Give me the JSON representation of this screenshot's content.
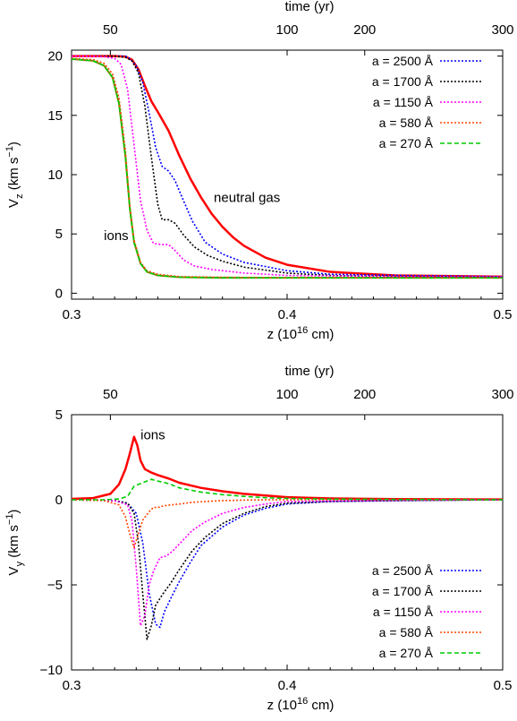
{
  "chart_data": [
    {
      "type": "line",
      "ylabel": "V",
      "ylabel_sub": "z",
      "ylabel_units_pre": " (km s",
      "ylabel_units_sup": "−1",
      "ylabel_units_post": ")",
      "xlabel_pre": "z (10",
      "xlabel_sup": "16",
      "xlabel_post": " cm)",
      "top_axis_label": "time (yr)",
      "top_ticks": [
        {
          "label": "50",
          "z": 0.318
        },
        {
          "label": "100",
          "z": 0.4
        },
        {
          "label": "200",
          "z": 0.436
        },
        {
          "label": "300",
          "z": 0.5
        }
      ],
      "xlim": [
        0.3,
        0.5
      ],
      "ylim": [
        -0.5,
        20.5
      ],
      "xticks": [
        {
          "value": 0.3,
          "label": "0.3"
        },
        {
          "value": 0.4,
          "label": "0.4"
        },
        {
          "value": 0.5,
          "label": "0.5"
        }
      ],
      "yticks": [
        {
          "value": 0,
          "label": "0"
        },
        {
          "value": 5,
          "label": "5"
        },
        {
          "value": 10,
          "label": "10"
        },
        {
          "value": 15,
          "label": "15"
        },
        {
          "value": 20,
          "label": "20"
        }
      ],
      "legend_position": "top-right",
      "annotations": [
        {
          "text": "neutral gas",
          "x": 0.366,
          "y": 7.7
        },
        {
          "text": "ions",
          "x": 0.315,
          "y": 4.5
        }
      ],
      "series": [
        {
          "name": "a = 2500 Å",
          "color": "#0000ff",
          "style": "dotted",
          "x": [
            0.3,
            0.3,
            0.32,
            0.325,
            0.327,
            0.33,
            0.333,
            0.336,
            0.339,
            0.342,
            0.345,
            0.348,
            0.351,
            0.356,
            0.362,
            0.37,
            0.38,
            0.4,
            0.42,
            0.45,
            0.5
          ],
          "values": [
            20,
            20,
            20,
            20,
            19.8,
            19.2,
            17.8,
            15.2,
            12.3,
            10.7,
            10.3,
            9.5,
            8.2,
            6.1,
            4.3,
            3.3,
            2.6,
            1.9,
            1.6,
            1.5,
            1.4
          ]
        },
        {
          "name": "a = 1700 Å",
          "color": "#000000",
          "style": "dotted",
          "x": [
            0.3,
            0.32,
            0.325,
            0.328,
            0.331,
            0.334,
            0.337,
            0.34,
            0.342,
            0.345,
            0.348,
            0.352,
            0.357,
            0.363,
            0.37,
            0.38,
            0.4,
            0.42,
            0.45,
            0.5
          ],
          "values": [
            20,
            20,
            19.9,
            19.6,
            18.6,
            15.8,
            11.5,
            7.5,
            6.2,
            6.2,
            5.9,
            4.9,
            3.9,
            3.2,
            2.7,
            2.2,
            1.7,
            1.5,
            1.4,
            1.4
          ]
        },
        {
          "name": "a = 1150 Å",
          "color": "#ff00ff",
          "style": "dotted",
          "x": [
            0.3,
            0.315,
            0.32,
            0.323,
            0.326,
            0.329,
            0.332,
            0.335,
            0.338,
            0.342,
            0.345,
            0.348,
            0.352,
            0.357,
            0.365,
            0.38,
            0.4,
            0.45,
            0.5
          ],
          "values": [
            20,
            19.95,
            19.8,
            19.3,
            17.2,
            12.5,
            7.8,
            5.3,
            4.2,
            4.1,
            4.1,
            3.6,
            2.8,
            2.3,
            2.0,
            1.7,
            1.5,
            1.4,
            1.4
          ]
        },
        {
          "name": "a = 580 Å",
          "color": "#ff4500",
          "style": "dotted",
          "x": [
            0.3,
            0.31,
            0.315,
            0.319,
            0.322,
            0.325,
            0.327,
            0.329,
            0.332,
            0.335,
            0.34,
            0.35,
            0.37,
            0.4,
            0.5
          ],
          "values": [
            19.8,
            19.7,
            19.4,
            18.5,
            16.5,
            12,
            7.5,
            4.5,
            2.6,
            1.9,
            1.6,
            1.4,
            1.35,
            1.3,
            1.3
          ]
        },
        {
          "name": "a = 270 Å",
          "color": "#00cc00",
          "style": "dashed",
          "x": [
            0.3,
            0.31,
            0.315,
            0.319,
            0.322,
            0.325,
            0.327,
            0.329,
            0.332,
            0.335,
            0.34,
            0.35,
            0.37,
            0.4,
            0.5
          ],
          "values": [
            19.75,
            19.6,
            19.2,
            18.2,
            16,
            11.5,
            7.2,
            4.3,
            2.5,
            1.8,
            1.5,
            1.35,
            1.3,
            1.3,
            1.3
          ]
        },
        {
          "name": "",
          "color": "#ff0000",
          "style": "solid",
          "width": 2.5,
          "x": [
            0.3,
            0.32,
            0.325,
            0.328,
            0.331,
            0.334,
            0.337,
            0.34,
            0.345,
            0.35,
            0.355,
            0.36,
            0.365,
            0.37,
            0.375,
            0.38,
            0.39,
            0.4,
            0.42,
            0.45,
            0.5
          ],
          "values": [
            20,
            20,
            19.95,
            19.7,
            18.9,
            17.5,
            16.2,
            15.3,
            13.7,
            11.6,
            9.7,
            8.1,
            6.7,
            5.6,
            4.7,
            4.0,
            3.0,
            2.4,
            1.8,
            1.5,
            1.4
          ]
        },
        {
          "name": "",
          "color": "#808000",
          "style": "solid",
          "width": 2,
          "x": [
            0.3,
            0.31,
            0.315,
            0.319,
            0.322,
            0.325,
            0.327,
            0.329,
            0.332,
            0.335,
            0.34,
            0.35,
            0.37,
            0.4,
            0.5
          ],
          "values": [
            19.75,
            19.6,
            19.2,
            18.2,
            16,
            11.5,
            7.2,
            4.3,
            2.5,
            1.8,
            1.5,
            1.35,
            1.3,
            1.3,
            1.3
          ]
        }
      ]
    },
    {
      "type": "line",
      "ylabel": "V",
      "ylabel_sub": "y",
      "ylabel_units_pre": " (km s",
      "ylabel_units_sup": "−1",
      "ylabel_units_post": ")",
      "xlabel_pre": "z (10",
      "xlabel_sup": "16",
      "xlabel_post": " cm)",
      "top_axis_label": "time (yr)",
      "top_ticks": [
        {
          "label": "50",
          "z": 0.318
        },
        {
          "label": "100",
          "z": 0.4
        },
        {
          "label": "200",
          "z": 0.436
        },
        {
          "label": "300",
          "z": 0.5
        }
      ],
      "xlim": [
        0.3,
        0.5
      ],
      "ylim": [
        -10,
        5
      ],
      "xticks": [
        {
          "value": 0.3,
          "label": "0.3"
        },
        {
          "value": 0.4,
          "label": "0.4"
        },
        {
          "value": 0.5,
          "label": "0.5"
        }
      ],
      "yticks": [
        {
          "value": -10,
          "label": "−10"
        },
        {
          "value": -5,
          "label": "−5"
        },
        {
          "value": 0,
          "label": "0"
        },
        {
          "value": 5,
          "label": "5"
        }
      ],
      "legend_position": "bottom-right",
      "annotations": [
        {
          "text": "ions",
          "x": 0.332,
          "y": 3.55
        }
      ],
      "series": [
        {
          "name": "a = 2500 Å",
          "color": "#0000ff",
          "style": "dotted",
          "x": [
            0.3,
            0.32,
            0.326,
            0.33,
            0.333,
            0.336,
            0.339,
            0.341,
            0.343,
            0.346,
            0.35,
            0.355,
            0.36,
            0.37,
            0.38,
            0.39,
            0.4,
            0.42,
            0.45,
            0.5
          ],
          "values": [
            0,
            -0.05,
            -0.2,
            -0.8,
            -2.5,
            -5.5,
            -7.3,
            -7.5,
            -6.6,
            -5.8,
            -4.8,
            -3.7,
            -2.7,
            -1.6,
            -0.9,
            -0.5,
            -0.25,
            -0.1,
            -0.05,
            0
          ]
        },
        {
          "name": "a = 1700 Å",
          "color": "#000000",
          "style": "dotted",
          "x": [
            0.3,
            0.32,
            0.326,
            0.329,
            0.331,
            0.333,
            0.335,
            0.337,
            0.339,
            0.342,
            0.346,
            0.35,
            0.356,
            0.362,
            0.37,
            0.38,
            0.39,
            0.4,
            0.42,
            0.45,
            0.5
          ],
          "values": [
            0,
            -0.05,
            -0.2,
            -0.8,
            -2.5,
            -5.5,
            -8.2,
            -7.4,
            -6.2,
            -5.6,
            -4.9,
            -4.1,
            -3.0,
            -2.2,
            -1.4,
            -0.8,
            -0.4,
            -0.2,
            -0.1,
            -0.05,
            0
          ]
        },
        {
          "name": "a = 1150 Å",
          "color": "#ff00ff",
          "style": "dotted",
          "x": [
            0.3,
            0.32,
            0.326,
            0.328,
            0.33,
            0.332,
            0.334,
            0.336,
            0.338,
            0.341,
            0.344,
            0.347,
            0.35,
            0.356,
            0.362,
            0.37,
            0.38,
            0.39,
            0.4,
            0.45,
            0.5
          ],
          "values": [
            0,
            -0.05,
            -0.3,
            -1.2,
            -4.0,
            -7.4,
            -6.8,
            -5.0,
            -4.2,
            -3.4,
            -3.3,
            -3.0,
            -2.6,
            -1.8,
            -1.3,
            -0.8,
            -0.45,
            -0.25,
            -0.1,
            -0.03,
            0
          ]
        },
        {
          "name": "a = 580 Å",
          "color": "#ff4500",
          "style": "dotted",
          "x": [
            0.3,
            0.315,
            0.322,
            0.325,
            0.327,
            0.329,
            0.331,
            0.333,
            0.336,
            0.338,
            0.34,
            0.343,
            0.346,
            0.35,
            0.356,
            0.362,
            0.37,
            0.38,
            0.39,
            0.4,
            0.45,
            0.5
          ],
          "values": [
            0,
            -0.05,
            -0.3,
            -1.0,
            -2.0,
            -2.8,
            -2.0,
            -1.2,
            -0.7,
            -0.45,
            -0.45,
            -0.35,
            -0.3,
            -0.25,
            -0.15,
            -0.1,
            -0.05,
            -0.02,
            0,
            0,
            0,
            0
          ]
        },
        {
          "name": "a = 270 Å",
          "color": "#00cc00",
          "style": "dashed",
          "x": [
            0.3,
            0.315,
            0.322,
            0.326,
            0.329,
            0.331,
            0.334,
            0.337,
            0.34,
            0.345,
            0.35,
            0.36,
            0.37,
            0.38,
            0.39,
            0.4,
            0.42,
            0.45,
            0.5
          ],
          "values": [
            0,
            0,
            0.05,
            0.2,
            0.8,
            0.9,
            1.05,
            1.2,
            1.1,
            0.95,
            0.7,
            0.45,
            0.3,
            0.2,
            0.12,
            0.08,
            0.04,
            0.02,
            0
          ]
        },
        {
          "name": "",
          "color": "#ff0000",
          "style": "solid",
          "width": 2.5,
          "x": [
            0.3,
            0.31,
            0.318,
            0.322,
            0.325,
            0.327,
            0.329,
            0.3305,
            0.332,
            0.334,
            0.337,
            0.34,
            0.345,
            0.35,
            0.36,
            0.37,
            0.38,
            0.39,
            0.4,
            0.42,
            0.45,
            0.5
          ],
          "values": [
            0.05,
            0.1,
            0.35,
            0.9,
            1.8,
            2.7,
            3.7,
            3.2,
            2.3,
            1.8,
            1.6,
            1.45,
            1.25,
            1.0,
            0.7,
            0.5,
            0.35,
            0.25,
            0.15,
            0.08,
            0.04,
            0.02
          ]
        }
      ]
    }
  ]
}
